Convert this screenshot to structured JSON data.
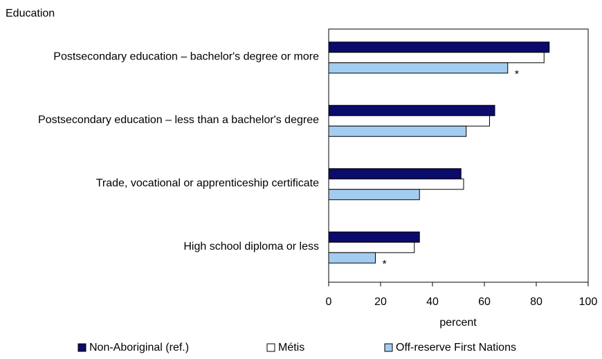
{
  "chart_data": {
    "type": "hbar",
    "y_label": "Education",
    "x_label": "percent",
    "categories": [
      "Postsecondary education – bachelor's degree or more",
      "Postsecondary education – less than a bachelor's degree",
      "Trade, vocational or apprenticeship certificate",
      "High school diploma or less"
    ],
    "series": [
      {
        "name": "Non-Aboriginal (ref.)",
        "color": "#0b0b6b",
        "values": [
          85,
          64,
          51,
          35
        ]
      },
      {
        "name": "Métis",
        "color": "#ffffff",
        "values": [
          83,
          62,
          52,
          33
        ]
      },
      {
        "name": "Off-reserve First Nations",
        "color": "#a3cdf0",
        "values": [
          69,
          53,
          35,
          18
        ],
        "flags": [
          "*",
          null,
          null,
          "*"
        ]
      }
    ],
    "xlim": [
      0,
      100
    ],
    "xticks": [
      0,
      20,
      40,
      60,
      80,
      100
    ],
    "grid": false,
    "legend": "bottom"
  }
}
